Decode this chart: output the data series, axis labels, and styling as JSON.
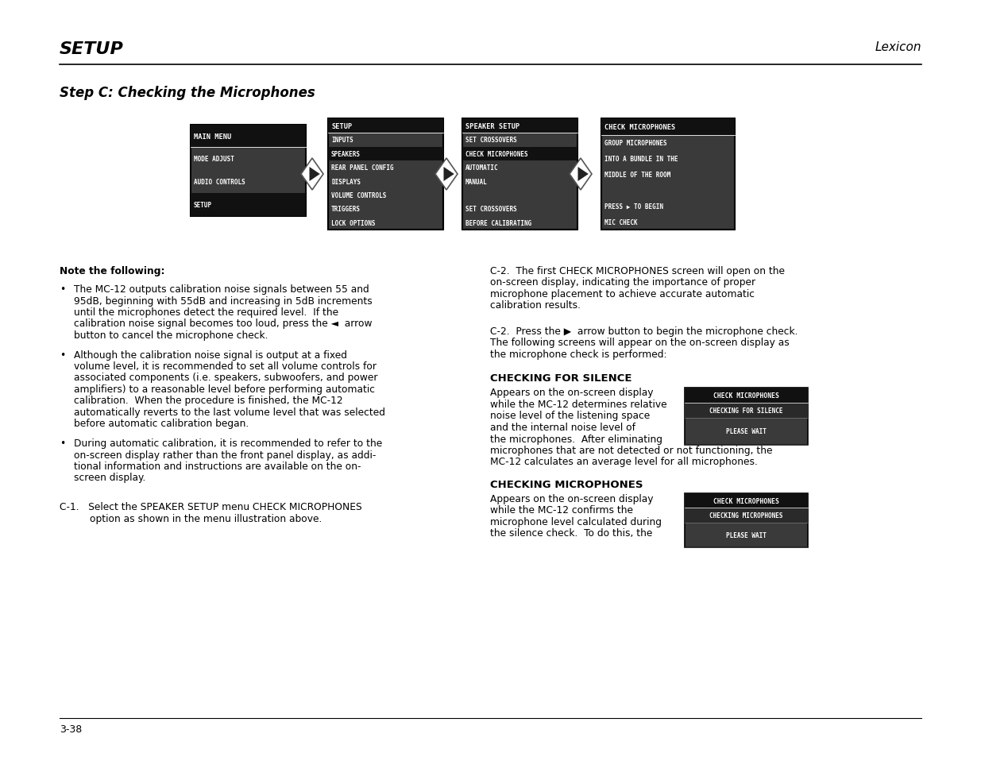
{
  "page_title": "SETUP",
  "page_subtitle": "Lexicon",
  "section_title": "Step C: Checking the Microphones",
  "page_number": "3-38",
  "bg_color": "#ffffff",
  "text_color": "#000000",
  "menu_dark_bg": "#3a3a3a",
  "menu_black_bg": "#111111",
  "menu_text_color": "#ffffff",
  "box1": {
    "title": "MAIN MENU",
    "items": [
      "MODE ADJUST",
      "AUDIO CONTROLS",
      "SETUP"
    ],
    "highlighted_items": [
      3
    ]
  },
  "box2": {
    "title": "SETUP",
    "items": [
      "INPUTS",
      "SPEAKERS",
      "REAR PANEL CONFIG",
      "DISPLAYS",
      "VOLUME CONTROLS",
      "TRIGGERS",
      "LOCK OPTIONS"
    ],
    "highlighted_items": [
      2
    ]
  },
  "box3": {
    "title": "SPEAKER SETUP",
    "items": [
      "SET CROSSOVERS",
      "CHECK MICROPHONES",
      "AUTOMATIC",
      "MANUAL",
      "",
      "SET CROSSOVERS",
      "BEFORE CALIBRATING"
    ],
    "highlighted_items": [
      2
    ]
  },
  "box4": {
    "title": "CHECK MICROPHONES",
    "items": [
      "GROUP MICROPHONES",
      "INTO A BUNDLE IN THE",
      "MIDDLE OF THE ROOM",
      "",
      "PRESS ▶ TO BEGIN",
      "MIC CHECK"
    ],
    "highlighted_items": []
  },
  "note_heading": "Note the following:",
  "bullet1": [
    "The MC-12 outputs calibration noise signals between 55 and 95dB, beginning with 55dB and increasing in 5dB increments until the microphones detect the required level. If the calibration noise signal becomes too loud, press the ◄ arrow",
    "button to cancel the microphone check."
  ],
  "bullet2": [
    "Although the calibration noise signal is output at a fixed volume level, it is recommended to set all volume controls for associated components (i.e. speakers, subwoofers, and power amplifiers) to a reasonable level before performing automatic calibration. When the procedure is finished, the MC-12",
    "automatically reverts to the last volume level that was selected",
    "before automatic calibration began."
  ],
  "bullet3": [
    "During automatic calibration, it is recommended to refer to the on-screen display rather than the front panel display, as addi-tional information and instructions are available on the on-",
    "screen display."
  ],
  "c1_line1": "C-1.   Select the SPEAKER SETUP menu CHECK MICROPHONES",
  "c1_line2": "option as shown in the menu illustration above.",
  "c2a_line1": "C-2.  The first CHECK MICROPHONES screen will open on the",
  "c2a_line2": "on-screen display, indicating the importance of proper",
  "c2a_line3": "microphone placement to achieve accurate automatic",
  "c2a_line4": "calibration results.",
  "c2b_line1": "C-2.  Press the ▶  arrow button to begin the microphone check.",
  "c2b_line2": "The following screens will appear on the on-screen display as",
  "c2b_line3": "the microphone check is performed:",
  "silence_heading": "CHECKING FOR SILENCE",
  "silence_text": [
    "Appears on the on-screen display",
    "while the MC-12 determines relative",
    "noise level of the listening space",
    "and the internal noise level of",
    "the microphones.  After eliminating",
    "microphones that are not detected or not functioning, the",
    "MC-12 calculates an average level for all microphones."
  ],
  "silence_box_title": "CHECK MICROPHONES",
  "silence_box_line2": "CHECKING FOR SILENCE",
  "silence_box_line3": "PLEASE WAIT",
  "mics_heading": "CHECKING MICROPHONES",
  "mics_text": [
    "Appears on the on-screen display",
    "while the MC-12 confirms the",
    "microphone level calculated during",
    "the silence check.  To do this, the"
  ],
  "mics_box_title": "CHECK MICROPHONES",
  "mics_box_line2": "CHECKING MICROPHONES",
  "mics_box_line3": "PLEASE WAIT"
}
